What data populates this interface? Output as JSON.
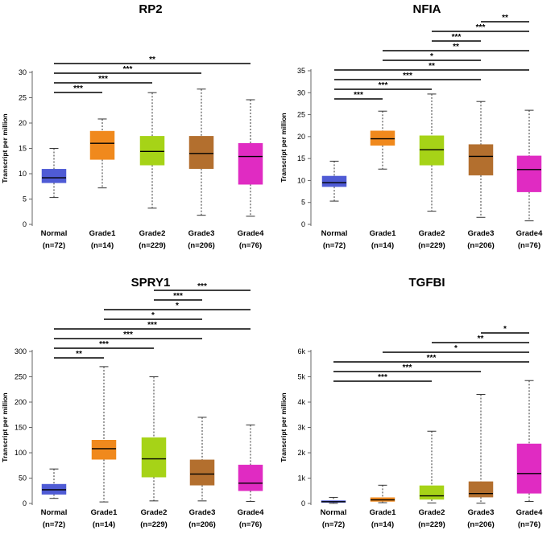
{
  "colors": {
    "Normal": "#4f5bd5",
    "Grade1": "#f0891d",
    "Grade2": "#a6d317",
    "Grade3": "#b36f2e",
    "Grade4": "#e02bc2"
  },
  "chart_data": [
    {
      "type": "box",
      "title": "RP2",
      "ylabel": "Transcript per million",
      "ylim": [
        0,
        30
      ],
      "yticks": [
        0,
        5,
        10,
        15,
        20,
        25,
        30
      ],
      "ytick_labels": [
        "0",
        "5",
        "10",
        "15",
        "20",
        "25",
        "30"
      ],
      "categories": [
        "Normal",
        "Grade1",
        "Grade2",
        "Grade3",
        "Grade4"
      ],
      "n_labels": [
        "(n=72)",
        "(n=14)",
        "(n=229)",
        "(n=206)",
        "(n=76)"
      ],
      "boxes": [
        {
          "min": 5.3,
          "q1": 8.2,
          "median": 9.2,
          "q3": 10.9,
          "max": 15.0
        },
        {
          "min": 7.2,
          "q1": 12.8,
          "median": 16.0,
          "q3": 18.4,
          "max": 20.8
        },
        {
          "min": 3.2,
          "q1": 11.7,
          "median": 14.4,
          "q3": 17.4,
          "max": 26.0
        },
        {
          "min": 1.8,
          "q1": 11.0,
          "median": 14.0,
          "q3": 17.4,
          "max": 26.7
        },
        {
          "min": 1.6,
          "q1": 7.9,
          "median": 13.4,
          "q3": 16.0,
          "max": 24.6
        }
      ],
      "significance": [
        {
          "from": 0,
          "to": 4,
          "label": "**"
        },
        {
          "from": 0,
          "to": 3,
          "label": "***"
        },
        {
          "from": 0,
          "to": 2,
          "label": "***"
        },
        {
          "from": 0,
          "to": 1,
          "label": "***"
        }
      ]
    },
    {
      "type": "box",
      "title": "NFIA",
      "ylabel": "Transcript per million",
      "ylim": [
        0,
        35
      ],
      "yticks": [
        0,
        5,
        10,
        15,
        20,
        25,
        30,
        35
      ],
      "ytick_labels": [
        "0",
        "5",
        "10",
        "15",
        "20",
        "25",
        "30",
        "35"
      ],
      "categories": [
        "Normal",
        "Grade1",
        "Grade2",
        "Grade3",
        "Grade4"
      ],
      "n_labels": [
        "(n=72)",
        "(n=14)",
        "(n=229)",
        "(n=206)",
        "(n=76)"
      ],
      "boxes": [
        {
          "min": 5.3,
          "q1": 8.6,
          "median": 9.5,
          "q3": 11.0,
          "max": 14.4
        },
        {
          "min": 12.6,
          "q1": 18.0,
          "median": 19.5,
          "q3": 21.3,
          "max": 25.8
        },
        {
          "min": 3.0,
          "q1": 13.5,
          "median": 17.0,
          "q3": 20.2,
          "max": 29.7
        },
        {
          "min": 1.6,
          "q1": 11.2,
          "median": 15.5,
          "q3": 18.2,
          "max": 28.0
        },
        {
          "min": 0.8,
          "q1": 7.4,
          "median": 12.5,
          "q3": 15.6,
          "max": 26.0
        }
      ],
      "significance": [
        {
          "from": 3,
          "to": 4,
          "label": "**"
        },
        {
          "from": 2,
          "to": 4,
          "label": "***"
        },
        {
          "from": 2,
          "to": 3,
          "label": "***"
        },
        {
          "from": 1,
          "to": 4,
          "label": "**"
        },
        {
          "from": 1,
          "to": 3,
          "label": "*"
        },
        {
          "from": 0,
          "to": 4,
          "label": "**"
        },
        {
          "from": 0,
          "to": 3,
          "label": "***"
        },
        {
          "from": 0,
          "to": 2,
          "label": "***"
        },
        {
          "from": 0,
          "to": 1,
          "label": "***"
        }
      ]
    },
    {
      "type": "box",
      "title": "SPRY1",
      "ylabel": "Transcript per million",
      "ylim": [
        0,
        300
      ],
      "yticks": [
        0,
        50,
        100,
        150,
        200,
        250,
        300
      ],
      "ytick_labels": [
        "0",
        "50",
        "100",
        "150",
        "200",
        "250",
        "300"
      ],
      "categories": [
        "Normal",
        "Grade1",
        "Grade2",
        "Grade3",
        "Grade4"
      ],
      "n_labels": [
        "(n=72)",
        "(n=14)",
        "(n=229)",
        "(n=206)",
        "(n=76)"
      ],
      "boxes": [
        {
          "min": 10,
          "q1": 18,
          "median": 27,
          "q3": 38,
          "max": 68
        },
        {
          "min": 3,
          "q1": 87,
          "median": 108,
          "q3": 125,
          "max": 270
        },
        {
          "min": 5,
          "q1": 52,
          "median": 88,
          "q3": 130,
          "max": 250
        },
        {
          "min": 5,
          "q1": 36,
          "median": 58,
          "q3": 86,
          "max": 170
        },
        {
          "min": 4,
          "q1": 25,
          "median": 40,
          "q3": 76,
          "max": 155
        }
      ],
      "significance": [
        {
          "from": 2,
          "to": 4,
          "label": "***"
        },
        {
          "from": 2,
          "to": 3,
          "label": "***"
        },
        {
          "from": 1,
          "to": 4,
          "label": "*"
        },
        {
          "from": 1,
          "to": 3,
          "label": "*"
        },
        {
          "from": 0,
          "to": 4,
          "label": "***"
        },
        {
          "from": 0,
          "to": 3,
          "label": "***"
        },
        {
          "from": 0,
          "to": 2,
          "label": "***"
        },
        {
          "from": 0,
          "to": 1,
          "label": "**"
        }
      ]
    },
    {
      "type": "box",
      "title": "TGFBI",
      "ylabel": "Transcript per million",
      "ylim": [
        0,
        6000
      ],
      "yticks": [
        0,
        1000,
        2000,
        3000,
        4000,
        5000,
        6000
      ],
      "ytick_labels": [
        "0",
        "1k",
        "2k",
        "3k",
        "4k",
        "5k",
        "6k"
      ],
      "categories": [
        "Normal",
        "Grade1",
        "Grade2",
        "Grade3",
        "Grade4"
      ],
      "n_labels": [
        "(n=72)",
        "(n=14)",
        "(n=229)",
        "(n=206)",
        "(n=76)"
      ],
      "boxes": [
        {
          "min": 5,
          "q1": 40,
          "median": 70,
          "q3": 110,
          "max": 240
        },
        {
          "min": 30,
          "q1": 80,
          "median": 140,
          "q3": 230,
          "max": 720
        },
        {
          "min": 20,
          "q1": 160,
          "median": 300,
          "q3": 700,
          "max": 2850
        },
        {
          "min": 10,
          "q1": 250,
          "median": 390,
          "q3": 860,
          "max": 4300
        },
        {
          "min": 80,
          "q1": 400,
          "median": 1180,
          "q3": 2350,
          "max": 4850
        }
      ],
      "significance": [
        {
          "from": 3,
          "to": 4,
          "label": "*"
        },
        {
          "from": 2,
          "to": 4,
          "label": "**"
        },
        {
          "from": 1,
          "to": 4,
          "label": "*"
        },
        {
          "from": 0,
          "to": 4,
          "label": "***"
        },
        {
          "from": 0,
          "to": 3,
          "label": "***"
        },
        {
          "from": 0,
          "to": 2,
          "label": "***"
        }
      ]
    }
  ]
}
